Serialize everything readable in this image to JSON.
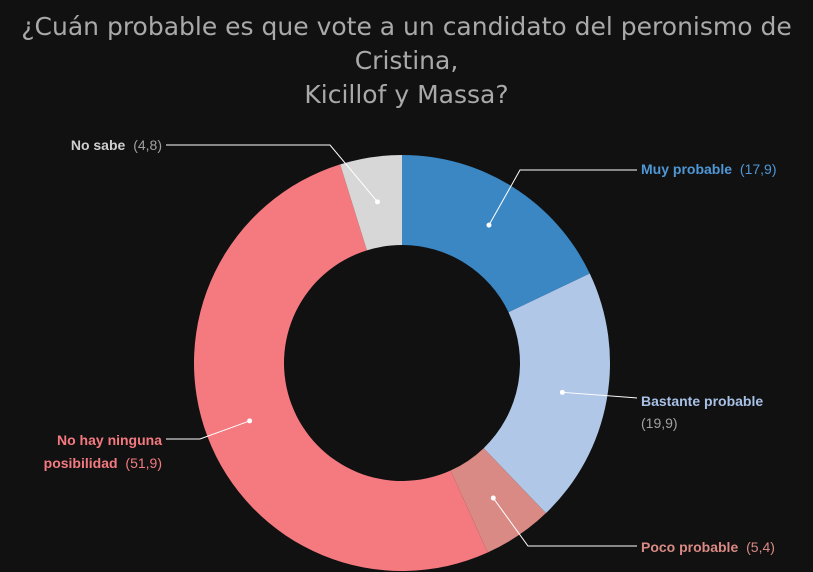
{
  "title_lines": [
    "¿Cuán probable es que vote a un candidato del peronismo de Cristina,",
    "Kicillof y Massa?"
  ],
  "chart_data": {
    "type": "pie",
    "title": "¿Cuán probable es que vote a un candidato del peronismo de Cristina, Kicillof y Massa?",
    "donut": true,
    "slices": [
      {
        "key": "muy",
        "name": "Muy probable",
        "value": 17.9,
        "value_label": "(17,9)",
        "color": "#3a87c4",
        "label_color": "#4f97d6"
      },
      {
        "key": "bastante",
        "name": "Bastante probable",
        "value": 19.9,
        "value_label": "(19,9)",
        "color": "#b0c7e8",
        "label_color": "#a8c0e6"
      },
      {
        "key": "poco",
        "name": "Poco probable",
        "value": 5.4,
        "value_label": "(5,4)",
        "color": "#d98a84",
        "label_color": "#d98a84"
      },
      {
        "key": "ninguna",
        "name": "No hay ninguna posibilidad",
        "name_lines": [
          "No hay ninguna",
          "posibilidad"
        ],
        "value": 51.9,
        "value_label": "(51,9)",
        "color": "#f47a80",
        "label_color": "#f47a80"
      },
      {
        "key": "nosabe",
        "name": "No sabe",
        "value": 4.8,
        "value_label": "(4,8)",
        "color": "#d7d7d7",
        "label_color": "#cfcfcf"
      }
    ]
  }
}
